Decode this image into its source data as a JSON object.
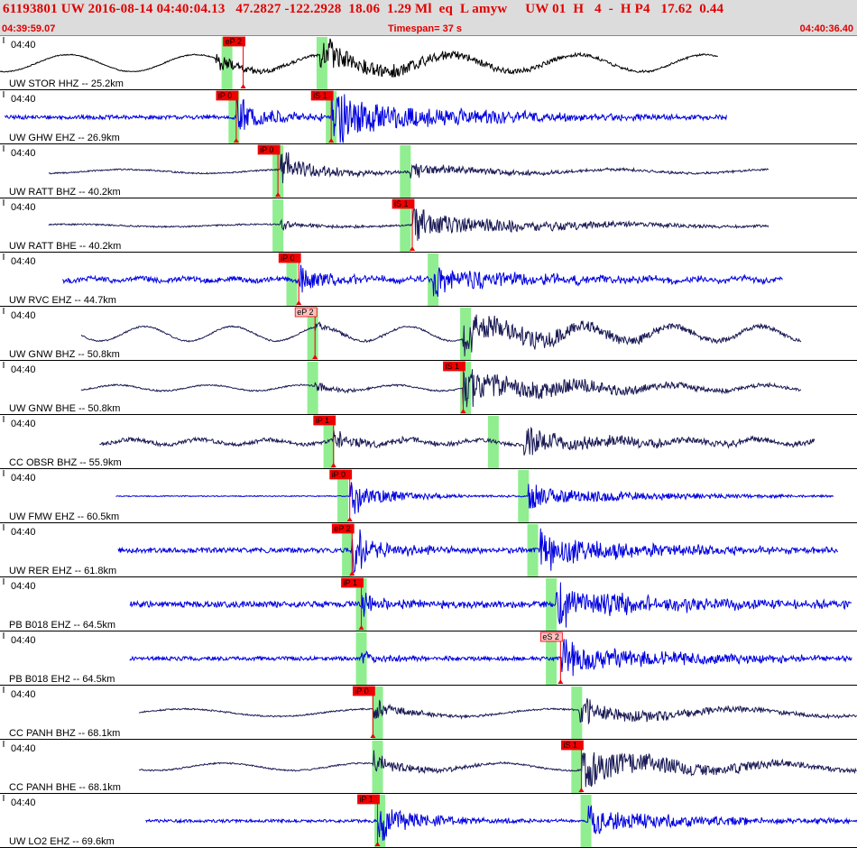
{
  "header": {
    "title": "61193801 UW 2016-08-14 04:40:04.13   47.2827 -122.2928  18.06  1.29 Ml  eq  L amyw     UW 01  H   4  -  H P4   17.62  0.44",
    "start_time": "04:39:59.07",
    "timespan": "Timespan=  37 s",
    "end_time": "04:40:36.40"
  },
  "chart_data": {
    "type": "line",
    "title": "61193801 UW 2016-08-14 04:40:04.13   47.2827 -122.2928  18.06  1.29 Ml  eq  L amyw     UW 01  H   4  -  H P4   17.62  0.44",
    "xlim": [
      0,
      37
    ],
    "x_unit": "s",
    "tick_label": "04:40",
    "grid": false,
    "legend": "none",
    "colors": {
      "short_period": "#0000e0",
      "broadband": "#1a1a55",
      "pick_box": "#ee0000",
      "pick_box_emergent": "#ffc0c0",
      "theoretical_band": "#90ee90",
      "pick_line": "#ee0000"
    },
    "traces": [
      {
        "label": "UW STOR HHZ -- 25.2km",
        "color": "#000000",
        "start": 0.0,
        "end": 31.0,
        "noise": 0.02,
        "bg_amp": 0.35,
        "bg_period": 5.5,
        "p": 9.3,
        "s": 13.8,
        "p_amp": 0.25,
        "s_amp": 0.45,
        "pred_p": 9.8,
        "pred_s": 13.9,
        "picks": [
          {
            "label": "eP 2",
            "time": 10.5,
            "emergent": false
          }
        ]
      },
      {
        "label": "UW GHW EHZ -- 26.9km",
        "color": "#0000e0",
        "start": 0.2,
        "end": 31.4,
        "noise": 0.08,
        "bg_amp": 0.0,
        "bg_period": 3,
        "p": 10.2,
        "s": 14.3,
        "p_amp": 0.5,
        "s_amp": 0.8,
        "pred_p": 10.1,
        "pred_s": 14.3,
        "picks": [
          {
            "label": "iP 0",
            "time": 10.2,
            "emergent": false
          },
          {
            "label": "iS 1",
            "time": 14.3,
            "emergent": false
          }
        ]
      },
      {
        "label": "UW RATT BHZ -- 40.2km",
        "color": "#1a1a55",
        "start": 2.1,
        "end": 33.2,
        "noise": 0.03,
        "bg_amp": 0.08,
        "bg_period": 7,
        "p": 12.1,
        "s": 17.7,
        "p_amp": 0.45,
        "s_amp": 0.2,
        "pred_p": 12.0,
        "pred_s": 17.5,
        "picks": [
          {
            "label": "iP 0",
            "time": 12.0,
            "emergent": false
          }
        ]
      },
      {
        "label": "UW RATT BHE -- 40.2km",
        "color": "#1a1a55",
        "start": 2.1,
        "end": 33.2,
        "noise": 0.03,
        "bg_amp": 0.05,
        "bg_period": 8,
        "p": 12.1,
        "s": 17.8,
        "p_amp": 0.12,
        "s_amp": 0.45,
        "pred_p": 12.0,
        "pred_s": 17.5,
        "picks": [
          {
            "label": "iS 1",
            "time": 17.8,
            "emergent": false
          }
        ]
      },
      {
        "label": "UW RVC EHZ -- 44.7km",
        "color": "#0000e0",
        "start": 2.7,
        "end": 33.8,
        "noise": 0.1,
        "bg_amp": 0.05,
        "bg_period": 2,
        "p": 12.9,
        "s": 18.7,
        "p_amp": 0.4,
        "s_amp": 0.4,
        "pred_p": 12.6,
        "pred_s": 18.7,
        "picks": [
          {
            "label": "iP 0",
            "time": 12.9,
            "emergent": false
          }
        ]
      },
      {
        "label": "UW GNW BHZ -- 50.8km",
        "color": "#1a1a55",
        "start": 3.5,
        "end": 34.6,
        "noise": 0.03,
        "bg_amp": 0.3,
        "bg_period": 3.8,
        "p": 13.6,
        "s": 20.0,
        "p_amp": 0.1,
        "s_amp": 0.6,
        "pred_p": 13.5,
        "pred_s": 20.1,
        "picks": [
          {
            "label": "eP 2",
            "time": 13.6,
            "emergent": true
          }
        ]
      },
      {
        "label": "UW GNW BHE -- 50.8km",
        "color": "#1a1a55",
        "start": 3.5,
        "end": 34.6,
        "noise": 0.03,
        "bg_amp": 0.12,
        "bg_period": 4,
        "p": 13.6,
        "s": 20.0,
        "p_amp": 0.1,
        "s_amp": 0.6,
        "pred_p": 13.5,
        "pred_s": 20.1,
        "picks": [
          {
            "label": "iS 1",
            "time": 20.0,
            "emergent": false
          }
        ]
      },
      {
        "label": "CC OBSR BHZ -- 55.9km",
        "color": "#1a1a55",
        "start": 4.3,
        "end": 35.2,
        "noise": 0.08,
        "bg_amp": 0.1,
        "bg_period": 3,
        "p": 14.4,
        "s": 22.6,
        "p_amp": 0.25,
        "s_amp": 0.4,
        "pred_p": 14.2,
        "pred_s": 21.3,
        "picks": [
          {
            "label": "iP 1",
            "time": 14.4,
            "emergent": false
          }
        ]
      },
      {
        "label": "UW FMW EHZ -- 60.5km",
        "color": "#0000e0",
        "start": 5.0,
        "end": 36.0,
        "noise": 0.02,
        "bg_amp": 0.0,
        "bg_period": 3,
        "p": 15.1,
        "s": 22.8,
        "p_amp": 0.45,
        "s_amp": 0.35,
        "pred_p": 14.8,
        "pred_s": 22.6,
        "picks": [
          {
            "label": "iP 0",
            "time": 15.1,
            "emergent": false
          }
        ]
      },
      {
        "label": "UW RER EHZ -- 61.8km",
        "color": "#0000e0",
        "start": 5.1,
        "end": 36.2,
        "noise": 0.1,
        "bg_amp": 0.0,
        "bg_period": 3,
        "p": 15.2,
        "s": 23.3,
        "p_amp": 0.5,
        "s_amp": 0.55,
        "pred_p": 15.0,
        "pred_s": 23.0,
        "picks": [
          {
            "label": "eP 2",
            "time": 15.2,
            "emergent": false
          }
        ]
      },
      {
        "label": "PB B018 EHZ -- 64.5km",
        "color": "#0000e0",
        "start": 5.6,
        "end": 36.8,
        "noise": 0.12,
        "bg_amp": 0.0,
        "bg_period": 3,
        "p": 15.6,
        "s": 24.0,
        "p_amp": 0.3,
        "s_amp": 0.6,
        "pred_p": 15.6,
        "pred_s": 23.8,
        "picks": [
          {
            "label": "iP 1",
            "time": 15.6,
            "emergent": false
          }
        ]
      },
      {
        "label": "PB B018 EH2 -- 64.5km",
        "color": "#0000e0",
        "start": 5.6,
        "end": 36.8,
        "noise": 0.08,
        "bg_amp": 0.0,
        "bg_period": 3,
        "p": 15.6,
        "s": 24.2,
        "p_amp": 0.15,
        "s_amp": 0.55,
        "pred_p": 15.6,
        "pred_s": 23.8,
        "picks": [
          {
            "label": "eS 2",
            "time": 24.2,
            "emergent": true
          }
        ]
      },
      {
        "label": "CC PANH BHZ -- 68.1km",
        "color": "#1a1a55",
        "start": 6.0,
        "end": 37.0,
        "noise": 0.03,
        "bg_amp": 0.15,
        "bg_period": 8,
        "p": 16.1,
        "s": 25.0,
        "p_amp": 0.25,
        "s_amp": 0.35,
        "pred_p": 16.3,
        "pred_s": 24.9,
        "picks": [
          {
            "label": "iP 0",
            "time": 16.1,
            "emergent": false
          }
        ]
      },
      {
        "label": "CC PANH BHE -- 68.1km",
        "color": "#1a1a55",
        "start": 6.0,
        "end": 37.0,
        "noise": 0.03,
        "bg_amp": 0.15,
        "bg_period": 6,
        "p": 16.1,
        "s": 25.1,
        "p_amp": 0.3,
        "s_amp": 0.6,
        "pred_p": 16.3,
        "pred_s": 24.9,
        "picks": [
          {
            "label": "iS 1",
            "time": 25.1,
            "emergent": false
          }
        ]
      },
      {
        "label": "UW LO2 EHZ -- 69.6km",
        "color": "#0000e0",
        "start": 6.3,
        "end": 37.0,
        "noise": 0.06,
        "bg_amp": 0.0,
        "bg_period": 3,
        "p": 16.3,
        "s": 25.4,
        "p_amp": 0.55,
        "s_amp": 0.4,
        "pred_p": 16.4,
        "pred_s": 25.3,
        "picks": [
          {
            "label": "iP 1",
            "time": 16.3,
            "emergent": false
          }
        ]
      }
    ]
  }
}
